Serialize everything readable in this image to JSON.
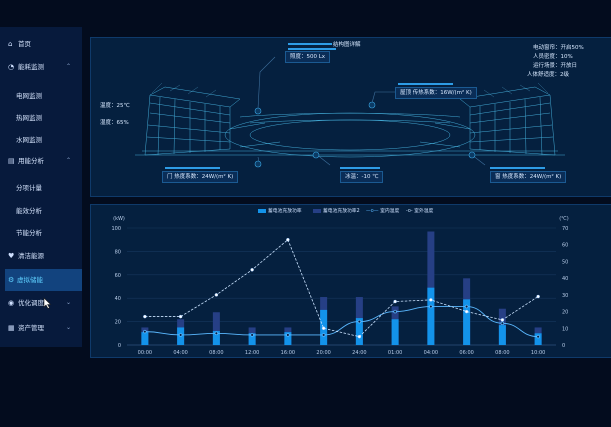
{
  "sidebar": {
    "items": [
      {
        "label": "首页",
        "icon": "home-icon",
        "glyph": "⌂",
        "chevron": ""
      },
      {
        "label": "能耗监测",
        "icon": "gauge-icon",
        "glyph": "◔",
        "chevron": "⌃"
      },
      {
        "label": "电网监测",
        "icon": "",
        "glyph": "",
        "chevron": ""
      },
      {
        "label": "热网监测",
        "icon": "",
        "glyph": "",
        "chevron": ""
      },
      {
        "label": "水网监测",
        "icon": "",
        "glyph": "",
        "chevron": ""
      },
      {
        "label": "用能分析",
        "icon": "analysis-icon",
        "glyph": "▤",
        "chevron": "⌃"
      },
      {
        "label": "分项计量",
        "icon": "",
        "glyph": "",
        "chevron": ""
      },
      {
        "label": "能效分析",
        "icon": "",
        "glyph": "",
        "chevron": ""
      },
      {
        "label": "节能分析",
        "icon": "",
        "glyph": "",
        "chevron": ""
      },
      {
        "label": "清洁能源",
        "icon": "clean-energy-icon",
        "glyph": "♥",
        "chevron": ""
      },
      {
        "label": "虚拟储能",
        "icon": "battery-icon",
        "glyph": "⚙",
        "chevron": ""
      },
      {
        "label": "优化调度",
        "icon": "dispatch-icon",
        "glyph": "◉",
        "chevron": "⌄"
      },
      {
        "label": "资产管理",
        "icon": "asset-icon",
        "glyph": "▦",
        "chevron": "⌄"
      }
    ]
  },
  "structure": {
    "title": "结构图详解",
    "illuminance": "照度：500 Lx",
    "roof": "屋顶 传热系数：16W/(m² K)",
    "temperature": "温度：25℃",
    "humidity": "湿度：65%",
    "door": "门 热度系数：24W/(m² K)",
    "ice": "冰温：-10 ℃",
    "window": "窗 热度系数：24W/(m² K)",
    "status": [
      "电动窗帘：开启50%",
      "人员密度：10%",
      "运行场景：开放日",
      "人体舒适度：2级"
    ]
  },
  "chart_data": {
    "type": "bar",
    "legend": [
      "蓄电池充放功率",
      "蓄电池充放功率2",
      "室内温度",
      "室外温度"
    ],
    "categories": [
      "00:00",
      "04:00",
      "08:00",
      "12:00",
      "16:00",
      "20:00",
      "24:00",
      "01:00",
      "04:00",
      "06:00",
      "08:00",
      "10:00"
    ],
    "y_left_label": "(kW)",
    "y_right_label": "(℃)",
    "y_left_ticks": [
      "0",
      "20",
      "40",
      "60",
      "80",
      "100"
    ],
    "y_right_ticks": [
      "0",
      "10",
      "20",
      "30",
      "40",
      "50",
      "60",
      "70"
    ],
    "ylim_left": [
      0,
      100
    ],
    "ylim_right": [
      0,
      70
    ],
    "series": [
      {
        "name": "蓄电池充放功率",
        "type": "bar",
        "values": [
          11,
          15,
          12,
          10,
          11,
          30,
          23,
          22,
          49,
          39,
          17,
          10
        ]
      },
      {
        "name": "蓄电池充放功率2",
        "type": "bar",
        "values": [
          15,
          22,
          28,
          15,
          15,
          41,
          41,
          33,
          97,
          57,
          31,
          15
        ]
      },
      {
        "name": "室内温度",
        "type": "line",
        "values": [
          8,
          6,
          7,
          6,
          6,
          6,
          14,
          20,
          23,
          23,
          13,
          5
        ]
      },
      {
        "name": "室外温度",
        "type": "line",
        "values": [
          17,
          17,
          30,
          45,
          63,
          10,
          5,
          26,
          27,
          20,
          15,
          29
        ]
      }
    ],
    "colors": {
      "bar1": "#1393ea",
      "bar2": "#263f85",
      "line1": "#5ab8ff",
      "line2": "#cbe3ff"
    }
  }
}
